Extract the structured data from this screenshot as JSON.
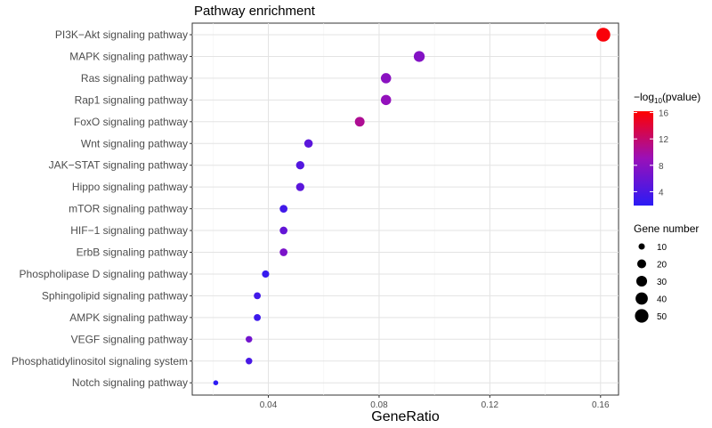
{
  "chart_data": {
    "type": "scatter",
    "title": "Pathway enrichment",
    "xlabel": "GeneRatio",
    "ylabel": "",
    "xlim": [
      0.0125,
      0.1665
    ],
    "x_ticks": [
      0.04,
      0.08,
      0.12,
      0.16
    ],
    "x_tick_labels": [
      "0.04",
      "0.08",
      "0.12",
      "0.16"
    ],
    "grid": true,
    "categories": [
      "PI3K−Akt signaling pathway",
      "MAPK signaling pathway",
      "Ras signaling pathway",
      "Rap1 signaling pathway",
      "FoxO signaling pathway",
      "Wnt signaling pathway",
      "JAK−STAT signaling pathway",
      "Hippo signaling pathway",
      "mTOR signaling pathway",
      "HIF−1 signaling pathway",
      "ErbB signaling pathway",
      "Phospholipase D signaling pathway",
      "Sphingolipid signaling pathway",
      "AMPK signaling pathway",
      "VEGF signaling pathway",
      "Phosphatidylinositol signaling system",
      "Notch signaling pathway"
    ],
    "gene_ratio": [
      0.161,
      0.0945,
      0.0825,
      0.0825,
      0.073,
      0.0545,
      0.0515,
      0.0515,
      0.0455,
      0.0455,
      0.0455,
      0.039,
      0.036,
      0.036,
      0.033,
      0.033,
      0.021
    ],
    "gene_number": [
      53,
      31,
      27,
      27,
      24,
      18,
      17,
      17,
      15,
      15,
      15,
      13,
      12,
      12,
      11,
      11,
      7
    ],
    "neg_log10_pvalue": [
      15.8,
      7.6,
      8.0,
      8.6,
      10.5,
      5.0,
      4.5,
      5.0,
      3.3,
      5.5,
      7.0,
      2.6,
      3.3,
      3.0,
      6.5,
      3.8,
      2.0
    ],
    "color_legend": {
      "title_prefix": "−log",
      "title_sub": "10",
      "title_suffix": "(pvalue)",
      "range": [
        1.9,
        16.2
      ],
      "ticks": [
        4,
        8,
        12,
        16
      ],
      "tick_labels": [
        "4",
        "8",
        "12",
        "16"
      ],
      "low_color": "#2b1bf5",
      "high_color": "#ff0000"
    },
    "size_legend": {
      "title": "Gene number",
      "values": [
        10,
        20,
        30,
        40,
        50
      ],
      "labels": [
        "10",
        "20",
        "30",
        "40",
        "50"
      ]
    },
    "legend_position": "right"
  }
}
